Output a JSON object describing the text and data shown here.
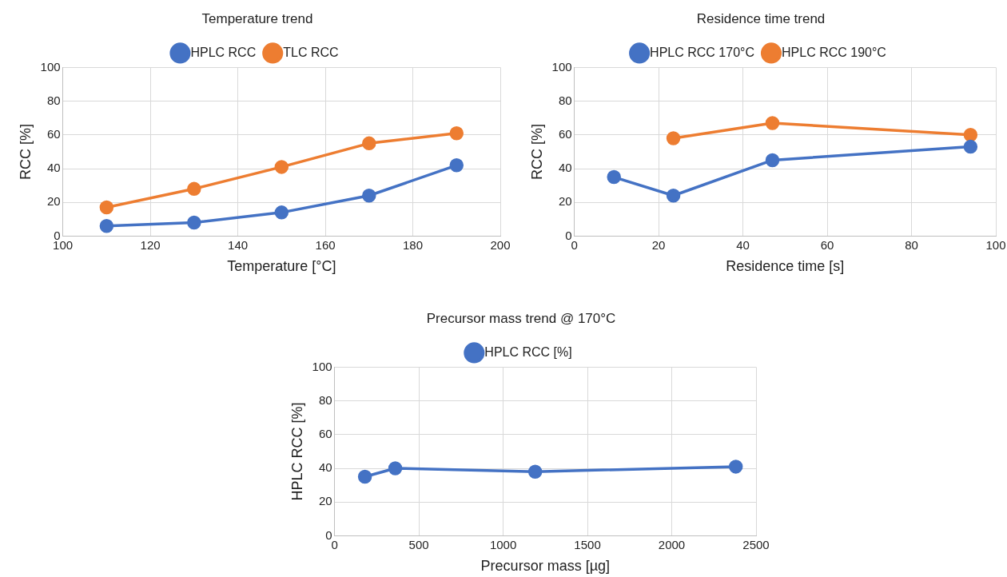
{
  "chart_data": [
    {
      "type": "line",
      "title": "Temperature trend",
      "xlabel": "Temperature [°C]",
      "ylabel": "RCC [%]",
      "xlim": [
        100,
        200
      ],
      "xticks": [
        100,
        120,
        140,
        160,
        180,
        200
      ],
      "ylim": [
        0,
        100
      ],
      "yticks": [
        0,
        20,
        40,
        60,
        80,
        100
      ],
      "grid": true,
      "legend": "top",
      "marker": "circle",
      "line_style": "solid",
      "series": [
        {
          "name": "HPLC RCC",
          "color": "#4472c4",
          "x": [
            110,
            130,
            150,
            170,
            190
          ],
          "values": [
            6,
            8,
            14,
            24,
            42
          ]
        },
        {
          "name": "TLC RCC",
          "color": "#ed7d31",
          "x": [
            110,
            130,
            150,
            170,
            190
          ],
          "values": [
            17,
            28,
            41,
            55,
            61
          ]
        }
      ]
    },
    {
      "type": "line",
      "title": "Residence time trend",
      "xlabel": "Residence time [s]",
      "ylabel": "RCC [%]",
      "xlim": [
        0,
        100
      ],
      "xticks": [
        0,
        20,
        40,
        60,
        80,
        100
      ],
      "ylim": [
        0,
        100
      ],
      "yticks": [
        0,
        20,
        40,
        60,
        80,
        100
      ],
      "grid": true,
      "legend": "top",
      "marker": "circle",
      "line_style": "solid",
      "series": [
        {
          "name": "HPLC RCC 170°C",
          "color": "#4472c4",
          "x": [
            9.4,
            23.5,
            47,
            94
          ],
          "values": [
            35,
            24,
            45,
            53
          ]
        },
        {
          "name": "HPLC RCC 190°C",
          "color": "#ed7d31",
          "x": [
            23.5,
            47,
            94
          ],
          "values": [
            58,
            67,
            60
          ]
        }
      ]
    },
    {
      "type": "line",
      "title": "Precursor mass trend @ 170°C",
      "xlabel": "Precursor mass [µg]",
      "ylabel": "HPLC RCC [%]",
      "xlim": [
        0,
        2500
      ],
      "xticks": [
        0,
        500,
        1000,
        1500,
        2000,
        2500
      ],
      "ylim": [
        0,
        100
      ],
      "yticks": [
        0,
        20,
        40,
        60,
        80,
        100
      ],
      "grid": true,
      "legend": "top",
      "marker": "circle",
      "line_style": "solid",
      "series": [
        {
          "name": "HPLC RCC [%]",
          "color": "#4472c4",
          "x": [
            180,
            360,
            1190,
            2380
          ],
          "values": [
            35,
            40,
            38,
            41
          ]
        }
      ]
    }
  ]
}
